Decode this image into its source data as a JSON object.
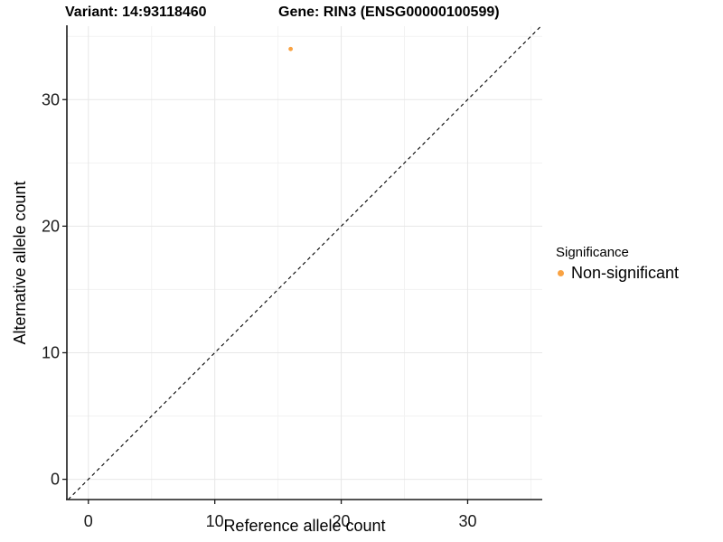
{
  "header": {
    "variant_title": "Variant: 14:93118460",
    "gene_title": "Gene: RIN3 (ENSG00000100599)"
  },
  "chart_data": {
    "type": "scatter",
    "title": "Variant: 14:93118460   Gene: RIN3 (ENSG00000100599)",
    "xlabel": "Reference allele count",
    "ylabel": "Alternative allele count",
    "xlim": [
      -1.7,
      35.9
    ],
    "ylim": [
      -1.6,
      35.8
    ],
    "x_major_ticks": [
      0,
      10,
      20,
      30
    ],
    "x_minor_ticks": [
      5,
      15,
      25,
      35
    ],
    "y_major_ticks": [
      0,
      10,
      20,
      30
    ],
    "y_minor_ticks": [
      5,
      15,
      25,
      35
    ],
    "grid": "on",
    "points": [
      {
        "x": 16,
        "y": 34,
        "series": "Non-significant",
        "color": "#F9A242"
      }
    ],
    "reference_line": {
      "type": "identity",
      "slope": 1,
      "intercept": 0,
      "style": "dashed",
      "color": "#000000"
    },
    "legend": {
      "title": "Significance",
      "position": "right",
      "items": [
        {
          "label": "Non-significant",
          "color": "#F9A242"
        }
      ]
    },
    "colors": {
      "non_significant": "#F9A242",
      "grid_major": "#E7E7E7",
      "grid_minor": "#F2F2F2",
      "axis": "#1a1a1a"
    }
  }
}
